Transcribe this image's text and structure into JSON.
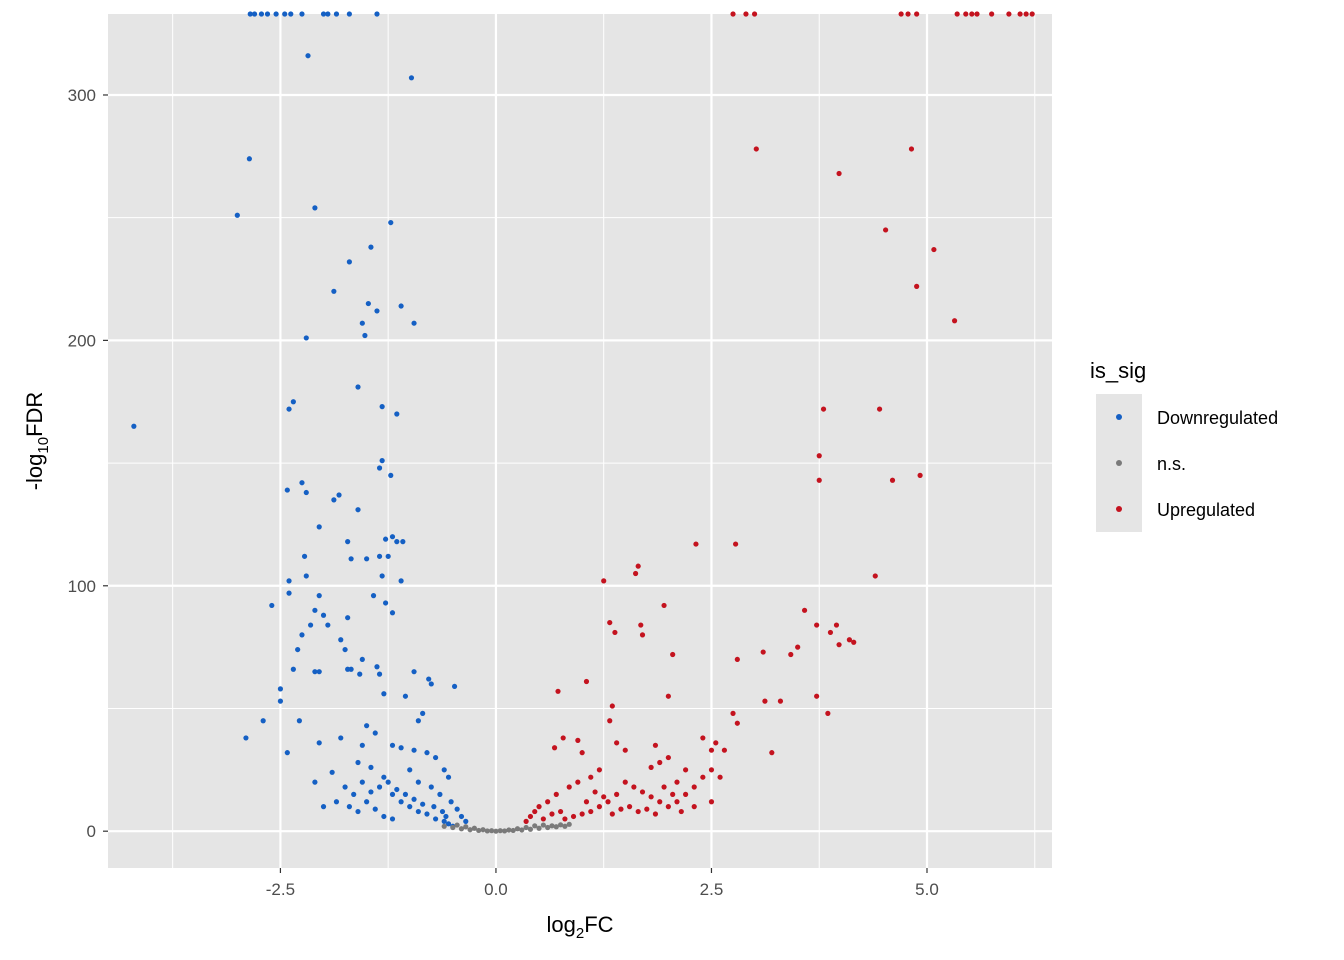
{
  "chart_data": {
    "type": "scatter",
    "title": "",
    "xlabel": {
      "base": "log",
      "sub": "2",
      "tail": "FC"
    },
    "ylabel": {
      "lead": "-log",
      "sub": "10",
      "tail": "FDR"
    },
    "xlim": [
      -4.5,
      6.45
    ],
    "ylim": [
      -15,
      333
    ],
    "x_ticks": [
      -2.5,
      0.0,
      2.5,
      5.0
    ],
    "x_tick_labels": [
      "-2.5",
      "0.0",
      "2.5",
      "5.0"
    ],
    "y_ticks": [
      0,
      100,
      200,
      300
    ],
    "y_tick_labels": [
      "0",
      "100",
      "200",
      "300"
    ],
    "grid": true,
    "legend": {
      "title": "is_sig",
      "placement": "right",
      "entries": [
        {
          "label": "Downregulated",
          "color": "#1560c4"
        },
        {
          "label": "n.s.",
          "color": "#7a7a7a"
        },
        {
          "label": "Upregulated",
          "color": "#c4131f"
        }
      ]
    },
    "colors": {
      "panel": "#e5e5e5",
      "grid": "#ffffff",
      "Downregulated": "#1560c4",
      "n.s.": "#7a7a7a",
      "Upregulated": "#c4131f"
    },
    "series": [
      {
        "name": "Downregulated",
        "points": [
          [
            -2.85,
            333
          ],
          [
            -2.8,
            333
          ],
          [
            -2.72,
            333
          ],
          [
            -2.65,
            333
          ],
          [
            -2.55,
            333
          ],
          [
            -2.45,
            333
          ],
          [
            -2.38,
            333
          ],
          [
            -2.25,
            333
          ],
          [
            -2.0,
            333
          ],
          [
            -1.95,
            333
          ],
          [
            -1.85,
            333
          ],
          [
            -1.7,
            333
          ],
          [
            -1.38,
            333
          ],
          [
            -2.18,
            316
          ],
          [
            -0.98,
            307
          ],
          [
            -2.86,
            274
          ],
          [
            -3.0,
            251
          ],
          [
            -2.1,
            254
          ],
          [
            -1.22,
            248
          ],
          [
            -1.45,
            238
          ],
          [
            -1.7,
            232
          ],
          [
            -1.88,
            220
          ],
          [
            -1.48,
            215
          ],
          [
            -1.1,
            214
          ],
          [
            -1.38,
            212
          ],
          [
            -1.55,
            207
          ],
          [
            -0.95,
            207
          ],
          [
            -1.52,
            202
          ],
          [
            -2.2,
            201
          ],
          [
            -1.6,
            181
          ],
          [
            -2.35,
            175
          ],
          [
            -2.4,
            172
          ],
          [
            -1.32,
            173
          ],
          [
            -1.15,
            170
          ],
          [
            -4.2,
            165
          ],
          [
            -1.32,
            151
          ],
          [
            -1.35,
            148
          ],
          [
            -1.22,
            145
          ],
          [
            -2.25,
            142
          ],
          [
            -2.2,
            138
          ],
          [
            -2.42,
            139
          ],
          [
            -1.82,
            137
          ],
          [
            -1.88,
            135
          ],
          [
            -1.6,
            131
          ],
          [
            -1.2,
            120
          ],
          [
            -1.15,
            118
          ],
          [
            -1.08,
            118
          ],
          [
            -1.28,
            119
          ],
          [
            -2.05,
            124
          ],
          [
            -2.22,
            112
          ],
          [
            -1.72,
            118
          ],
          [
            -1.25,
            112
          ],
          [
            -1.35,
            112
          ],
          [
            -1.5,
            111
          ],
          [
            -1.68,
            111
          ],
          [
            -2.2,
            104
          ],
          [
            -1.32,
            104
          ],
          [
            -1.1,
            102
          ],
          [
            -2.4,
            102
          ],
          [
            -2.4,
            97
          ],
          [
            -2.6,
            92
          ],
          [
            -2.05,
            96
          ],
          [
            -1.42,
            96
          ],
          [
            -1.28,
            93
          ],
          [
            -1.2,
            89
          ],
          [
            -2.1,
            90
          ],
          [
            -2.0,
            88
          ],
          [
            -1.72,
            87
          ],
          [
            -2.15,
            84
          ],
          [
            -1.95,
            84
          ],
          [
            -2.25,
            80
          ],
          [
            -1.8,
            78
          ],
          [
            -2.3,
            74
          ],
          [
            -1.75,
            74
          ],
          [
            -1.55,
            70
          ],
          [
            -1.38,
            67
          ],
          [
            -1.68,
            66
          ],
          [
            -1.72,
            66
          ],
          [
            -2.35,
            66
          ],
          [
            -2.05,
            65
          ],
          [
            -2.1,
            65
          ],
          [
            -1.58,
            64
          ],
          [
            -1.35,
            64
          ],
          [
            -0.95,
            65
          ],
          [
            -0.78,
            62
          ],
          [
            -0.75,
            60
          ],
          [
            -0.48,
            59
          ],
          [
            -2.5,
            58
          ],
          [
            -2.5,
            53
          ],
          [
            -2.7,
            45
          ],
          [
            -2.28,
            45
          ],
          [
            -2.9,
            38
          ],
          [
            -2.42,
            32
          ],
          [
            -1.3,
            56
          ],
          [
            -1.05,
            55
          ],
          [
            -0.9,
            45
          ],
          [
            -0.85,
            48
          ],
          [
            -1.5,
            43
          ],
          [
            -1.4,
            40
          ],
          [
            -1.8,
            38
          ],
          [
            -2.05,
            36
          ],
          [
            -1.55,
            35
          ],
          [
            -1.2,
            35
          ],
          [
            -1.1,
            34
          ],
          [
            -0.95,
            33
          ],
          [
            -0.8,
            32
          ],
          [
            -0.7,
            30
          ],
          [
            -0.6,
            25
          ],
          [
            -0.55,
            22
          ],
          [
            -1.6,
            28
          ],
          [
            -1.45,
            26
          ],
          [
            -1.9,
            24
          ],
          [
            -2.1,
            20
          ],
          [
            -1.75,
            18
          ],
          [
            -1.3,
            22
          ],
          [
            -1.0,
            25
          ],
          [
            -0.9,
            20
          ],
          [
            -0.75,
            18
          ],
          [
            -0.65,
            15
          ],
          [
            -0.52,
            12
          ],
          [
            -0.45,
            9
          ],
          [
            -0.4,
            6
          ],
          [
            -0.35,
            4
          ],
          [
            -1.2,
            15
          ],
          [
            -1.1,
            12
          ],
          [
            -1.0,
            10
          ],
          [
            -0.9,
            8
          ],
          [
            -0.8,
            7
          ],
          [
            -1.5,
            12
          ],
          [
            -1.6,
            8
          ],
          [
            -1.4,
            9
          ],
          [
            -1.3,
            6
          ],
          [
            -1.2,
            5
          ],
          [
            -2.0,
            10
          ],
          [
            -1.85,
            12
          ],
          [
            -0.7,
            5
          ],
          [
            -0.6,
            4
          ],
          [
            -0.55,
            3
          ],
          [
            -0.5,
            2
          ],
          [
            -1.35,
            18
          ],
          [
            -1.25,
            20
          ],
          [
            -1.15,
            17
          ],
          [
            -1.05,
            15
          ],
          [
            -0.95,
            13
          ],
          [
            -0.85,
            11
          ],
          [
            -1.7,
            10
          ],
          [
            -1.65,
            15
          ],
          [
            -1.55,
            20
          ],
          [
            -1.45,
            16
          ],
          [
            -0.72,
            10
          ],
          [
            -0.62,
            8
          ],
          [
            -0.58,
            6
          ]
        ]
      },
      {
        "name": "n.s.",
        "points": [
          [
            -0.6,
            2
          ],
          [
            -0.5,
            1.5
          ],
          [
            -0.4,
            1
          ],
          [
            -0.3,
            0.6
          ],
          [
            -0.2,
            0.3
          ],
          [
            -0.1,
            0.1
          ],
          [
            0,
            0
          ],
          [
            0.1,
            0.1
          ],
          [
            0.2,
            0.3
          ],
          [
            0.3,
            0.5
          ],
          [
            0.4,
            0.8
          ],
          [
            0.5,
            1.2
          ],
          [
            0.6,
            1.5
          ],
          [
            0.7,
            1.8
          ],
          [
            0.8,
            2
          ],
          [
            -0.45,
            2.5
          ],
          [
            -0.35,
            1.8
          ],
          [
            0.35,
            1.5
          ],
          [
            0.45,
            2.2
          ],
          [
            0.55,
            2.5
          ],
          [
            0.25,
            1
          ],
          [
            -0.25,
            1.2
          ],
          [
            0.65,
            2.2
          ],
          [
            0.15,
            0.5
          ],
          [
            -0.15,
            0.6
          ],
          [
            0.05,
            0.2
          ],
          [
            -0.05,
            0.2
          ],
          [
            0.75,
            2.6
          ],
          [
            0.85,
            2.8
          ]
        ]
      },
      {
        "name": "Upregulated",
        "points": [
          [
            2.75,
            333
          ],
          [
            2.9,
            333
          ],
          [
            3.0,
            333
          ],
          [
            4.7,
            333
          ],
          [
            4.78,
            333
          ],
          [
            4.88,
            333
          ],
          [
            5.35,
            333
          ],
          [
            5.45,
            333
          ],
          [
            5.52,
            333
          ],
          [
            5.58,
            333
          ],
          [
            5.75,
            333
          ],
          [
            5.95,
            333
          ],
          [
            6.08,
            333
          ],
          [
            6.15,
            333
          ],
          [
            6.22,
            333
          ],
          [
            3.02,
            278
          ],
          [
            4.82,
            278
          ],
          [
            3.98,
            268
          ],
          [
            4.52,
            245
          ],
          [
            5.08,
            237
          ],
          [
            4.88,
            222
          ],
          [
            5.32,
            208
          ],
          [
            3.8,
            172
          ],
          [
            4.45,
            172
          ],
          [
            3.75,
            153
          ],
          [
            4.92,
            145
          ],
          [
            3.75,
            143
          ],
          [
            4.6,
            143
          ],
          [
            2.32,
            117
          ],
          [
            2.78,
            117
          ],
          [
            1.65,
            108
          ],
          [
            1.62,
            105
          ],
          [
            1.25,
            102
          ],
          [
            4.4,
            104
          ],
          [
            1.95,
            92
          ],
          [
            3.58,
            90
          ],
          [
            1.32,
            85
          ],
          [
            3.72,
            84
          ],
          [
            3.95,
            84
          ],
          [
            1.68,
            84
          ],
          [
            1.38,
            81
          ],
          [
            1.7,
            80
          ],
          [
            3.88,
            81
          ],
          [
            4.1,
            78
          ],
          [
            4.15,
            77
          ],
          [
            3.5,
            75
          ],
          [
            3.98,
            76
          ],
          [
            3.1,
            73
          ],
          [
            3.42,
            72
          ],
          [
            2.05,
            72
          ],
          [
            2.8,
            70
          ],
          [
            1.05,
            61
          ],
          [
            0.72,
            57
          ],
          [
            2.0,
            55
          ],
          [
            3.72,
            55
          ],
          [
            3.12,
            53
          ],
          [
            3.3,
            53
          ],
          [
            1.35,
            51
          ],
          [
            3.85,
            48
          ],
          [
            2.75,
            48
          ],
          [
            1.32,
            45
          ],
          [
            2.8,
            44
          ],
          [
            0.78,
            38
          ],
          [
            0.95,
            37
          ],
          [
            1.4,
            36
          ],
          [
            0.68,
            34
          ],
          [
            1.0,
            32
          ],
          [
            1.5,
            33
          ],
          [
            1.85,
            35
          ],
          [
            2.4,
            38
          ],
          [
            2.55,
            36
          ],
          [
            2.5,
            33
          ],
          [
            2.65,
            33
          ],
          [
            3.2,
            32
          ],
          [
            2.0,
            30
          ],
          [
            1.9,
            28
          ],
          [
            1.8,
            26
          ],
          [
            1.2,
            25
          ],
          [
            1.1,
            22
          ],
          [
            0.95,
            20
          ],
          [
            0.85,
            18
          ],
          [
            0.7,
            15
          ],
          [
            0.6,
            12
          ],
          [
            0.5,
            10
          ],
          [
            0.45,
            8
          ],
          [
            0.4,
            6
          ],
          [
            0.35,
            4
          ],
          [
            1.5,
            20
          ],
          [
            1.6,
            18
          ],
          [
            1.7,
            16
          ],
          [
            1.8,
            14
          ],
          [
            1.9,
            12
          ],
          [
            2.0,
            10
          ],
          [
            2.1,
            12
          ],
          [
            2.2,
            15
          ],
          [
            2.3,
            18
          ],
          [
            2.4,
            22
          ],
          [
            2.5,
            25
          ],
          [
            2.6,
            22
          ],
          [
            1.4,
            15
          ],
          [
            1.3,
            12
          ],
          [
            1.2,
            10
          ],
          [
            1.1,
            8
          ],
          [
            1.0,
            7
          ],
          [
            0.9,
            6
          ],
          [
            0.8,
            5
          ],
          [
            2.2,
            25
          ],
          [
            2.1,
            20
          ],
          [
            1.95,
            18
          ],
          [
            2.3,
            10
          ],
          [
            2.5,
            12
          ],
          [
            1.25,
            14
          ],
          [
            1.15,
            16
          ],
          [
            1.05,
            12
          ],
          [
            0.75,
            8
          ],
          [
            0.65,
            7
          ],
          [
            0.55,
            5
          ],
          [
            1.55,
            10
          ],
          [
            1.65,
            8
          ],
          [
            1.75,
            9
          ],
          [
            1.85,
            7
          ],
          [
            1.45,
            9
          ],
          [
            1.35,
            7
          ],
          [
            2.05,
            15
          ],
          [
            2.15,
            8
          ]
        ]
      }
    ]
  }
}
